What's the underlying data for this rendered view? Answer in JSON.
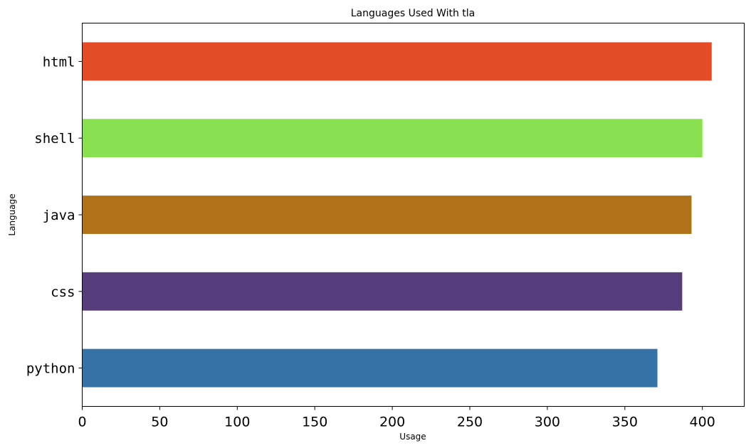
{
  "chart_data": {
    "type": "bar",
    "orientation": "horizontal",
    "title": "Languages Used With tla",
    "xlabel": "Usage",
    "ylabel": "Language",
    "categories": [
      "python",
      "css",
      "java",
      "shell",
      "html"
    ],
    "values": [
      371,
      387,
      393,
      400,
      406
    ],
    "colors": [
      "#3572A5",
      "#563D7C",
      "#B07219",
      "#89E051",
      "#E34C26"
    ],
    "xlim": [
      0,
      427
    ],
    "xticks": [
      0,
      50,
      100,
      150,
      200,
      250,
      300,
      350,
      400
    ],
    "grid": false,
    "legend": "none"
  }
}
